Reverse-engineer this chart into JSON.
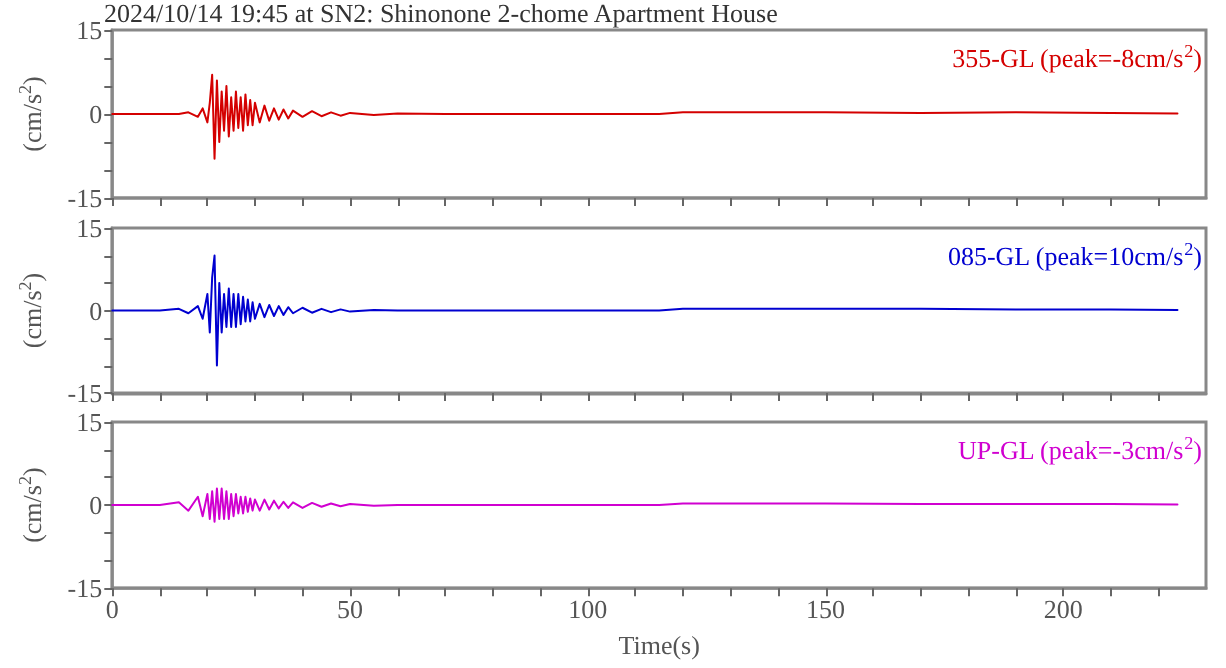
{
  "chart_data": [
    {
      "type": "line",
      "title": "2024/10/14 19:45 at SN2: Shinonone 2-chome Apartment House",
      "ylabel": "(cm/s$^{2}$)",
      "annotations": [
        "355-GL (peak=-8cm/s$^{2}$)"
      ],
      "xlim": [
        0,
        230
      ],
      "xticks": [
        0,
        {
          "value": 10,
          "label": null
        },
        {
          "value": 20,
          "label": null
        },
        {
          "value": 30,
          "label": null
        },
        {
          "value": 40,
          "label": null
        },
        50,
        {
          "value": 60,
          "label": null
        },
        {
          "value": 70,
          "label": null
        },
        {
          "value": 80,
          "label": null
        },
        {
          "value": 90,
          "label": null
        },
        100,
        {
          "value": 110,
          "label": null
        },
        {
          "value": 120,
          "label": null
        },
        {
          "value": 130,
          "label": null
        },
        {
          "value": 140,
          "label": null
        },
        150,
        {
          "value": 160,
          "label": null
        },
        {
          "value": 170,
          "label": null
        },
        {
          "value": 180,
          "label": null
        },
        {
          "value": 190,
          "label": null
        },
        200,
        {
          "value": 210,
          "label": null
        },
        {
          "value": 220,
          "label": null
        }
      ],
      "ylim": [
        -15,
        15
      ],
      "yticks": [
        -15,
        {
          "value": -10,
          "label": null
        },
        {
          "value": -5,
          "label": null
        },
        0,
        {
          "value": 5,
          "label": null
        },
        {
          "value": 10,
          "label": null
        },
        15
      ],
      "tick_labels": "y",
      "grid": false,
      "marker": "none",
      "x": [
        0,
        5,
        10,
        14,
        16,
        18,
        19,
        20,
        20.5,
        21,
        21.5,
        22,
        22.5,
        23,
        23.5,
        24,
        24.5,
        25,
        25.5,
        26,
        26.5,
        27,
        27.5,
        28,
        28.5,
        29,
        29.5,
        30,
        31,
        32,
        33,
        34,
        35,
        36,
        37,
        38,
        40,
        42,
        44,
        46,
        48,
        50,
        55,
        60,
        70,
        80,
        100,
        115,
        120,
        130,
        150,
        170,
        190,
        210,
        224
      ],
      "series": [
        {
          "color": "#d40000",
          "values": [
            0,
            0,
            0,
            0,
            0.3,
            -0.5,
            1,
            -1.5,
            2,
            7,
            -8,
            6,
            -5,
            4,
            -3,
            5,
            -4,
            3,
            -3,
            4,
            -2.5,
            3,
            -3,
            3.5,
            -2,
            2.5,
            -2,
            2,
            -1.5,
            1.5,
            -1.2,
            1,
            -1,
            0.8,
            -0.8,
            0.6,
            -0.5,
            0.5,
            -0.4,
            0.3,
            -0.3,
            0.2,
            -0.2,
            0.1,
            0,
            0,
            0,
            0,
            0.3,
            0.3,
            0.3,
            0.2,
            0.3,
            0.2,
            0.1
          ]
        }
      ]
    },
    {
      "type": "line",
      "ylabel": "(cm/s$^{2}$)",
      "annotations": [
        "085-GL (peak=10cm/s$^{2}$)"
      ],
      "xlim": [
        0,
        230
      ],
      "xticks": [
        0,
        {
          "value": 10,
          "label": null
        },
        {
          "value": 20,
          "label": null
        },
        {
          "value": 30,
          "label": null
        },
        {
          "value": 40,
          "label": null
        },
        50,
        {
          "value": 60,
          "label": null
        },
        {
          "value": 70,
          "label": null
        },
        {
          "value": 80,
          "label": null
        },
        {
          "value": 90,
          "label": null
        },
        100,
        {
          "value": 110,
          "label": null
        },
        {
          "value": 120,
          "label": null
        },
        {
          "value": 130,
          "label": null
        },
        {
          "value": 140,
          "label": null
        },
        150,
        {
          "value": 160,
          "label": null
        },
        {
          "value": 170,
          "label": null
        },
        {
          "value": 180,
          "label": null
        },
        {
          "value": 190,
          "label": null
        },
        200,
        {
          "value": 210,
          "label": null
        },
        {
          "value": 220,
          "label": null
        }
      ],
      "ylim": [
        -15,
        15
      ],
      "yticks": [
        -15,
        {
          "value": -10,
          "label": null
        },
        {
          "value": -5,
          "label": null
        },
        0,
        {
          "value": 5,
          "label": null
        },
        {
          "value": 10,
          "label": null
        },
        15
      ],
      "tick_labels": "y",
      "grid": false,
      "marker": "none",
      "x": [
        0,
        5,
        10,
        14,
        16,
        18,
        19,
        20,
        20.5,
        21,
        21.5,
        22,
        22.5,
        23,
        23.5,
        24,
        24.5,
        25,
        25.5,
        26,
        26.5,
        27,
        27.5,
        28,
        28.5,
        29,
        29.5,
        30,
        31,
        32,
        33,
        34,
        35,
        36,
        37,
        38,
        40,
        42,
        44,
        46,
        48,
        50,
        55,
        60,
        70,
        80,
        100,
        115,
        120,
        130,
        150,
        170,
        190,
        210,
        224
      ],
      "series": [
        {
          "color": "#0000d0",
          "values": [
            0,
            0,
            0,
            0.3,
            -0.5,
            0.8,
            -1.5,
            3,
            -4,
            6,
            10,
            -10,
            5,
            -4,
            3,
            -3,
            4,
            -3,
            3,
            -3,
            3,
            -2.5,
            2.5,
            -2,
            2,
            -2,
            1.5,
            -1.5,
            1.2,
            -1.2,
            1,
            -1,
            0.8,
            -0.8,
            0.6,
            -0.5,
            0.5,
            -0.4,
            0.3,
            -0.3,
            0.2,
            -0.2,
            0.1,
            0,
            0,
            0,
            0,
            0,
            0.3,
            0.3,
            0.3,
            0.3,
            0.2,
            0.2,
            0.1
          ]
        }
      ]
    },
    {
      "type": "line",
      "xlabel": "Time(s)",
      "ylabel": "(cm/s$^{2}$)",
      "annotations": [
        "UP-GL (peak=-3cm/s$^{2}$)"
      ],
      "xlim": [
        0,
        230
      ],
      "xticks": [
        0,
        {
          "value": 10,
          "label": null
        },
        {
          "value": 20,
          "label": null
        },
        {
          "value": 30,
          "label": null
        },
        {
          "value": 40,
          "label": null
        },
        50,
        {
          "value": 60,
          "label": null
        },
        {
          "value": 70,
          "label": null
        },
        {
          "value": 80,
          "label": null
        },
        {
          "value": 90,
          "label": null
        },
        100,
        {
          "value": 110,
          "label": null
        },
        {
          "value": 120,
          "label": null
        },
        {
          "value": 130,
          "label": null
        },
        {
          "value": 140,
          "label": null
        },
        150,
        {
          "value": 160,
          "label": null
        },
        {
          "value": 170,
          "label": null
        },
        {
          "value": 180,
          "label": null
        },
        {
          "value": 190,
          "label": null
        },
        200,
        {
          "value": 210,
          "label": null
        },
        {
          "value": 220,
          "label": null
        }
      ],
      "ylim": [
        -15,
        15
      ],
      "yticks": [
        -15,
        {
          "value": -10,
          "label": null
        },
        {
          "value": -5,
          "label": null
        },
        0,
        {
          "value": 5,
          "label": null
        },
        {
          "value": 10,
          "label": null
        },
        15
      ],
      "grid": false,
      "marker": "none",
      "x": [
        0,
        5,
        10,
        14,
        16,
        18,
        19,
        20,
        20.5,
        21,
        21.5,
        22,
        22.5,
        23,
        23.5,
        24,
        24.5,
        25,
        25.5,
        26,
        26.5,
        27,
        27.5,
        28,
        28.5,
        29,
        29.5,
        30,
        31,
        32,
        33,
        34,
        35,
        36,
        37,
        38,
        40,
        42,
        44,
        46,
        48,
        50,
        55,
        60,
        70,
        80,
        100,
        115,
        120,
        130,
        150,
        170,
        190,
        210,
        224
      ],
      "series": [
        {
          "color": "#d000d0",
          "values": [
            0,
            0,
            0,
            0.5,
            -1,
            1.5,
            -2,
            2,
            -2.5,
            2.5,
            -3,
            3,
            -2.5,
            3,
            -2.5,
            2.5,
            -2.5,
            2,
            -2,
            2,
            -1.5,
            1.5,
            -1.5,
            1.5,
            -1.2,
            1.2,
            -1,
            1,
            -1,
            1,
            -0.8,
            0.8,
            -0.6,
            0.6,
            -0.5,
            0.5,
            -0.5,
            0.4,
            -0.3,
            0.3,
            -0.2,
            0.2,
            -0.1,
            0,
            0,
            0,
            0,
            0,
            0.3,
            0.3,
            0.3,
            0.2,
            0.2,
            0.2,
            0.1
          ]
        }
      ]
    }
  ]
}
